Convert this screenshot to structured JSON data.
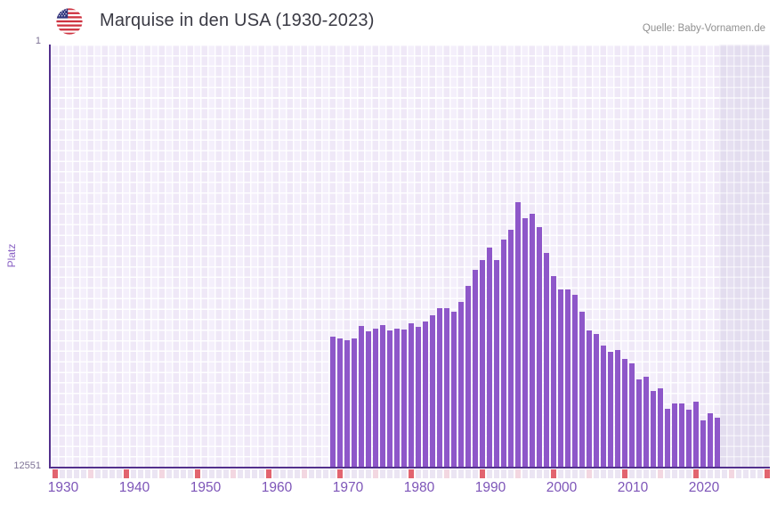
{
  "header": {
    "flag_icon": "us-flag-icon",
    "title": "Marquise in den USA (1930-2023)",
    "source": "Quelle: Baby-Vornamen.de"
  },
  "chart_data": {
    "type": "bar",
    "title": "Marquise in den USA (1930-2023)",
    "xlabel": "",
    "ylabel": "Platz",
    "y_axis": {
      "top_tick": "1",
      "bottom_tick": "12551",
      "min": 1,
      "max": 12551,
      "inverted": true
    },
    "x_axis": {
      "start": 1930,
      "end": 2030,
      "ticks": [
        1930,
        1940,
        1950,
        1960,
        1970,
        1980,
        1990,
        2000,
        2010,
        2020
      ],
      "shaded_from": 2024
    },
    "grid": true,
    "legend": false,
    "series": [
      {
        "name": "Marquise",
        "years": [
          1969,
          1970,
          1971,
          1972,
          1973,
          1974,
          1975,
          1976,
          1977,
          1978,
          1979,
          1980,
          1981,
          1982,
          1983,
          1984,
          1985,
          1986,
          1987,
          1988,
          1989,
          1990,
          1991,
          1992,
          1993,
          1994,
          1995,
          1996,
          1997,
          1998,
          1999,
          2000,
          2001,
          2002,
          2003,
          2004,
          2005,
          2006,
          2007,
          2008,
          2009,
          2010,
          2011,
          2012,
          2013,
          2014,
          2015,
          2016,
          2017,
          2018,
          2019,
          2020,
          2021,
          2022,
          2023
        ],
        "values": [
          8700,
          8760,
          8800,
          8750,
          8390,
          8550,
          8470,
          8370,
          8520,
          8460,
          8490,
          8310,
          8420,
          8260,
          8060,
          7860,
          7860,
          7950,
          7680,
          7180,
          6710,
          6430,
          6040,
          6420,
          5800,
          5530,
          4710,
          5180,
          5050,
          5430,
          6210,
          6890,
          7310,
          7310,
          7460,
          7950,
          8530,
          8630,
          8970,
          9160,
          9100,
          9380,
          9510,
          9980,
          9910,
          10330,
          10250,
          10840,
          10690,
          10690,
          10880,
          10650,
          11190,
          10980,
          11110
        ]
      }
    ],
    "colors": {
      "bar": "#8e57c9",
      "axis_line": "#53308d",
      "decade_cell": "#e2646f",
      "half_decade_cell": "#f3d7e1",
      "plain_cell": "#ebe5f3"
    }
  }
}
